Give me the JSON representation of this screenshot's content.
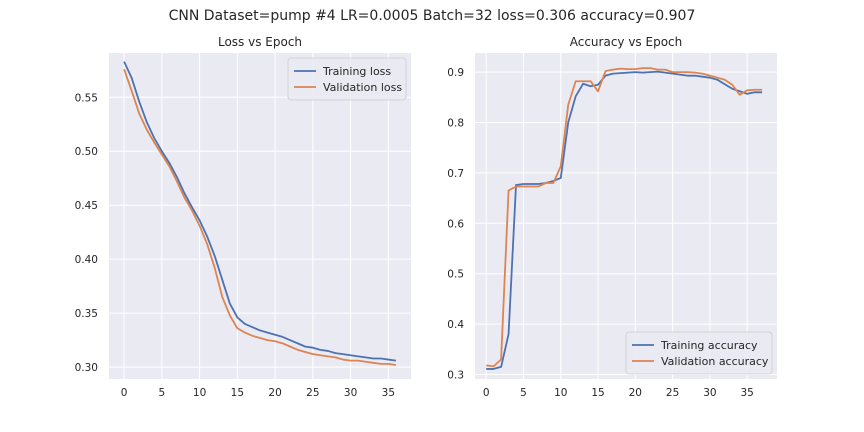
{
  "figure": {
    "suptitle": "CNN Dataset=pump #4 LR=0.0005 Batch=32 loss=0.306 accuracy=0.907"
  },
  "chart_data": [
    {
      "type": "line",
      "title": "Loss vs Epoch",
      "xlabel": "",
      "ylabel": "",
      "xlim": [
        -2,
        38
      ],
      "ylim": [
        0.289,
        0.591
      ],
      "xticks": [
        0,
        5,
        10,
        15,
        20,
        25,
        30,
        35
      ],
      "yticks": [
        0.3,
        0.35,
        0.4,
        0.45,
        0.5,
        0.55
      ],
      "ytick_labels": [
        "0.30",
        "0.35",
        "0.40",
        "0.45",
        "0.50",
        "0.55"
      ],
      "grid": true,
      "legend_position": "top-right",
      "x": [
        0,
        1,
        2,
        3,
        4,
        5,
        6,
        7,
        8,
        9,
        10,
        11,
        12,
        13,
        14,
        15,
        16,
        17,
        18,
        19,
        20,
        21,
        22,
        23,
        24,
        25,
        26,
        27,
        28,
        29,
        30,
        31,
        32,
        33,
        34,
        35,
        36
      ],
      "series": [
        {
          "name": "Training loss",
          "color": "#4c72b0",
          "values": [
            0.583,
            0.568,
            0.546,
            0.527,
            0.512,
            0.5,
            0.489,
            0.476,
            0.461,
            0.448,
            0.436,
            0.421,
            0.403,
            0.381,
            0.359,
            0.346,
            0.34,
            0.337,
            0.334,
            0.332,
            0.33,
            0.328,
            0.325,
            0.322,
            0.319,
            0.318,
            0.316,
            0.315,
            0.313,
            0.312,
            0.311,
            0.31,
            0.309,
            0.308,
            0.308,
            0.307,
            0.306
          ]
        },
        {
          "name": "Validation loss",
          "color": "#dd8452",
          "values": [
            0.576,
            0.556,
            0.535,
            0.52,
            0.508,
            0.497,
            0.486,
            0.472,
            0.457,
            0.445,
            0.431,
            0.414,
            0.392,
            0.365,
            0.348,
            0.336,
            0.332,
            0.329,
            0.327,
            0.325,
            0.324,
            0.322,
            0.319,
            0.316,
            0.314,
            0.312,
            0.311,
            0.31,
            0.309,
            0.307,
            0.306,
            0.306,
            0.305,
            0.304,
            0.303,
            0.303,
            0.302
          ]
        }
      ]
    },
    {
      "type": "line",
      "title": "Accuracy vs Epoch",
      "xlabel": "",
      "ylabel": "",
      "xlim": [
        -1.5,
        39
      ],
      "ylim": [
        0.291,
        0.938
      ],
      "xticks": [
        0,
        5,
        10,
        15,
        20,
        25,
        30,
        35
      ],
      "yticks": [
        0.3,
        0.4,
        0.5,
        0.6,
        0.7,
        0.8,
        0.9
      ],
      "ytick_labels": [
        "0.3",
        "0.4",
        "0.5",
        "0.6",
        "0.7",
        "0.8",
        "0.9"
      ],
      "grid": true,
      "legend_position": "bottom-right",
      "x": [
        0,
        1,
        2,
        3,
        4,
        5,
        6,
        7,
        8,
        9,
        10,
        11,
        12,
        13,
        14,
        15,
        16,
        17,
        18,
        19,
        20,
        21,
        22,
        23,
        24,
        25,
        26,
        27,
        28,
        29,
        30,
        31,
        32,
        33,
        34,
        35,
        36,
        37
      ],
      "series": [
        {
          "name": "Training accuracy",
          "color": "#4c72b0",
          "values": [
            0.311,
            0.311,
            0.315,
            0.38,
            0.676,
            0.678,
            0.678,
            0.678,
            0.68,
            0.684,
            0.69,
            0.8,
            0.852,
            0.877,
            0.872,
            0.875,
            0.893,
            0.897,
            0.898,
            0.899,
            0.9,
            0.899,
            0.9,
            0.901,
            0.899,
            0.897,
            0.895,
            0.893,
            0.893,
            0.891,
            0.889,
            0.885,
            0.876,
            0.867,
            0.862,
            0.857,
            0.86,
            0.86
          ]
        },
        {
          "name": "Validation accuracy",
          "color": "#dd8452",
          "values": [
            0.318,
            0.316,
            0.33,
            0.665,
            0.673,
            0.673,
            0.673,
            0.673,
            0.68,
            0.68,
            0.713,
            0.835,
            0.882,
            0.882,
            0.882,
            0.862,
            0.902,
            0.905,
            0.907,
            0.906,
            0.906,
            0.908,
            0.908,
            0.905,
            0.905,
            0.9,
            0.9,
            0.9,
            0.899,
            0.897,
            0.893,
            0.889,
            0.885,
            0.875,
            0.855,
            0.864,
            0.865,
            0.865
          ]
        }
      ]
    }
  ]
}
